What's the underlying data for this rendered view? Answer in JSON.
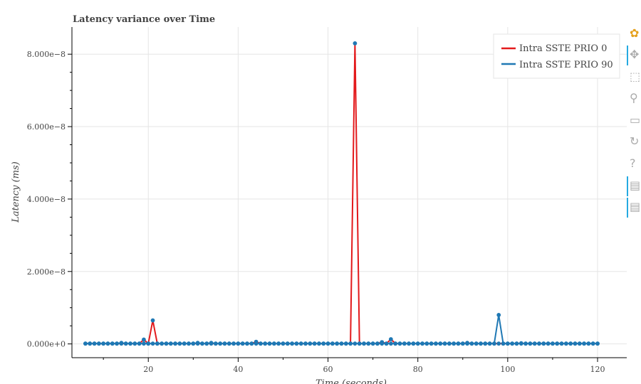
{
  "chart_data": {
    "type": "line",
    "title": "Latency variance over Time",
    "xlabel": "Time (seconds)",
    "ylabel": "Latency (ms)",
    "xlim": [
      3,
      126.5
    ],
    "ylim": [
      -3.8e-09,
      8.75e-08
    ],
    "x_ticks": [
      20,
      40,
      60,
      80,
      100,
      120
    ],
    "x_tick_labels": [
      "20",
      "40",
      "60",
      "80",
      "100",
      "120"
    ],
    "y_ticks": [
      0,
      2e-08,
      4e-08,
      6e-08,
      8e-08
    ],
    "y_tick_labels": [
      "0.000e+0",
      "2.000e−8",
      "4.000e−8",
      "6.000e−8",
      "8.000e−8"
    ],
    "grid": true,
    "legend_position": "top-right",
    "x_start": 6,
    "x_end": 120,
    "series": [
      {
        "name": "Intra SSTE PRIO 0",
        "color": "#e31a1c",
        "baseline": 1e-10,
        "values": {
          "19": 1.2e-09,
          "21": 6.5e-09,
          "44": 6e-10,
          "66": 8.3e-08,
          "72": 5e-10,
          "74": 1.3e-09,
          "91": 3e-10,
          "103": 2e-10
        }
      },
      {
        "name": "Intra SSTE PRIO 90",
        "color": "#1f78b4",
        "baseline": 1e-10,
        "values": {
          "14": 3e-10,
          "31": 3e-10,
          "34": 3e-10,
          "98": 8e-09
        }
      }
    ]
  },
  "toolbar": {
    "items": [
      {
        "name": "bokeh-logo",
        "glyph": "✿",
        "color": "#e5a01b",
        "active": false
      },
      {
        "name": "pan-icon",
        "glyph": "✥",
        "color": "#aaaaaa",
        "active": true
      },
      {
        "name": "box-zoom-icon",
        "glyph": "⬚",
        "color": "#aaaaaa",
        "active": false
      },
      {
        "name": "wheel-zoom-icon",
        "glyph": "⚲",
        "color": "#aaaaaa",
        "active": false
      },
      {
        "name": "save-icon",
        "glyph": "▭",
        "color": "#aaaaaa",
        "active": false
      },
      {
        "name": "reset-icon",
        "glyph": "↻",
        "color": "#aaaaaa",
        "active": false
      },
      {
        "name": "help-icon",
        "glyph": "?",
        "color": "#aaaaaa",
        "active": false
      },
      {
        "name": "hover-icon-1",
        "glyph": "▤",
        "color": "#aaaaaa",
        "active": true
      },
      {
        "name": "hover-icon-2",
        "glyph": "▤",
        "color": "#aaaaaa",
        "active": true
      }
    ]
  }
}
